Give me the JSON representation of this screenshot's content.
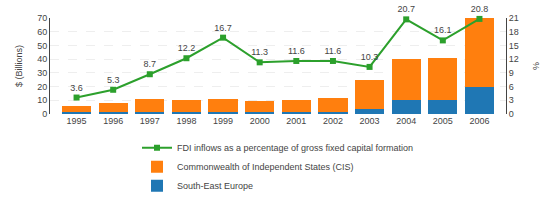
{
  "chart_data": {
    "type": "bar",
    "categories": [
      "1995",
      "1996",
      "1997",
      "1998",
      "1999",
      "2000",
      "2001",
      "2002",
      "2003",
      "2004",
      "2005",
      "2006"
    ],
    "series": [
      {
        "name": "South-East Europe",
        "type": "bar",
        "values": [
          1.5,
          1.5,
          1.5,
          1.5,
          1.5,
          1.5,
          1.5,
          1.5,
          4.0,
          10.0,
          10.0,
          20.0
        ]
      },
      {
        "name": "Commonwealth of Independent States (CIS)",
        "type": "bar",
        "values": [
          4.0,
          6.5,
          9.5,
          9.0,
          9.5,
          8.0,
          9.0,
          10.0,
          21.0,
          30.0,
          31.0,
          50.0
        ]
      },
      {
        "name": "FDI inflows as a percentage of gross fixed capital formation",
        "type": "line",
        "axis": "y2",
        "marker": "square",
        "data_labels": true,
        "values": [
          3.6,
          5.3,
          8.7,
          12.2,
          16.7,
          11.3,
          11.6,
          11.6,
          10.3,
          20.7,
          16.1,
          20.8
        ]
      }
    ],
    "stacked": true,
    "ylabel": "$ (Billions)",
    "y2label": "%",
    "ylim": [
      0,
      70
    ],
    "yticks": [
      0,
      10,
      20,
      30,
      40,
      50,
      60,
      70
    ],
    "y2lim": [
      0,
      21
    ],
    "y2ticks": [
      0,
      3,
      6,
      9,
      12,
      15,
      18,
      21
    ],
    "grid": true,
    "legend": "bottom"
  }
}
